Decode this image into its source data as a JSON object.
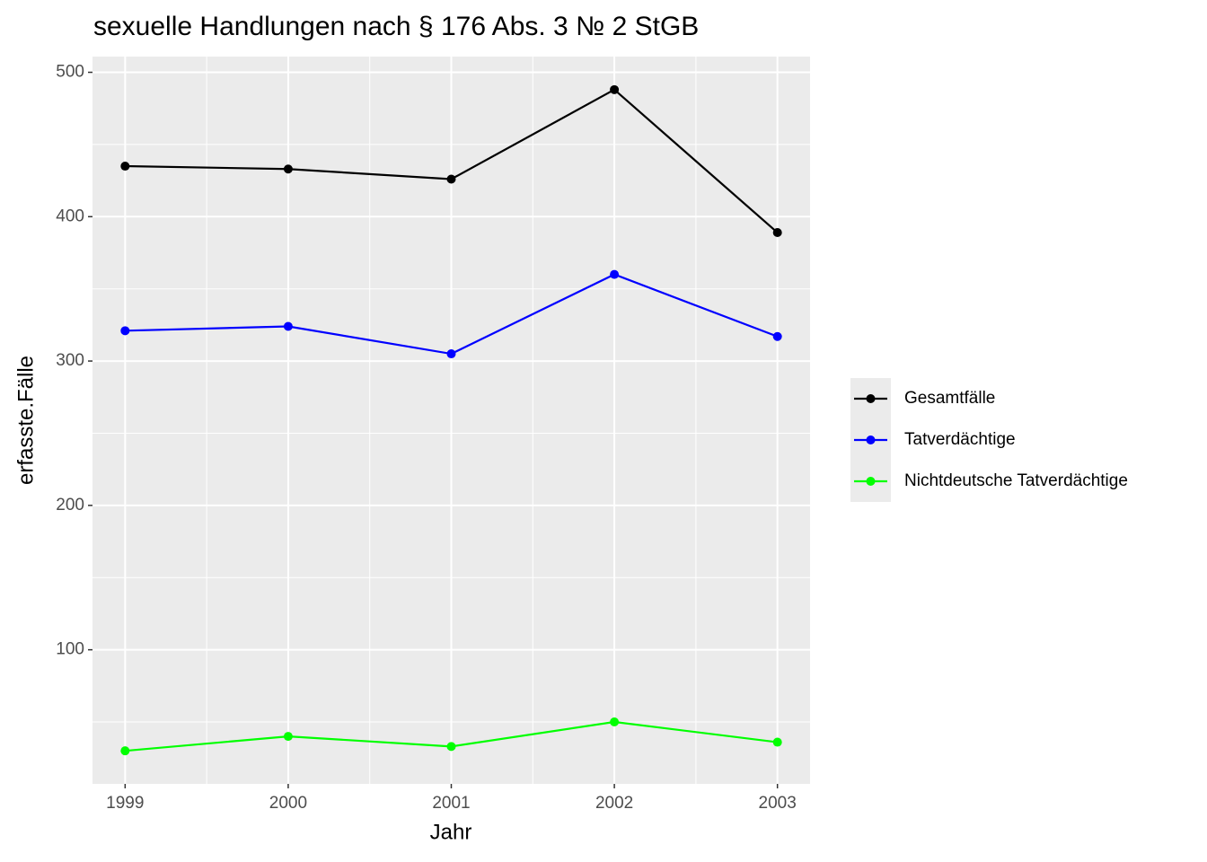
{
  "chart_data": {
    "type": "line",
    "title": "sexuelle Handlungen nach § 176 Abs. 3 № 2 StGB",
    "x_label": "Jahr",
    "y_label": "erfasste.Fälle",
    "x": [
      1999,
      2000,
      2001,
      2002,
      2003
    ],
    "series": [
      {
        "name": "Gesamtfälle",
        "color": "#000000",
        "values": [
          435,
          433,
          426,
          488,
          389
        ]
      },
      {
        "name": "Tatverdächtige",
        "color": "#0000ff",
        "values": [
          321,
          324,
          305,
          360,
          317
        ]
      },
      {
        "name": "Nichtdeutsche Tatverdächtige",
        "color": "#00ff00",
        "values": [
          30,
          40,
          33,
          50,
          36
        ]
      }
    ],
    "xlim": [
      1998.8,
      2003.2
    ],
    "xticks": [
      1999,
      2000,
      2001,
      2002,
      2003
    ],
    "ylim": [
      7.1,
      510.9
    ],
    "yticks": [
      100,
      200,
      300,
      400,
      500
    ],
    "grid": true,
    "legend_position": "right"
  }
}
